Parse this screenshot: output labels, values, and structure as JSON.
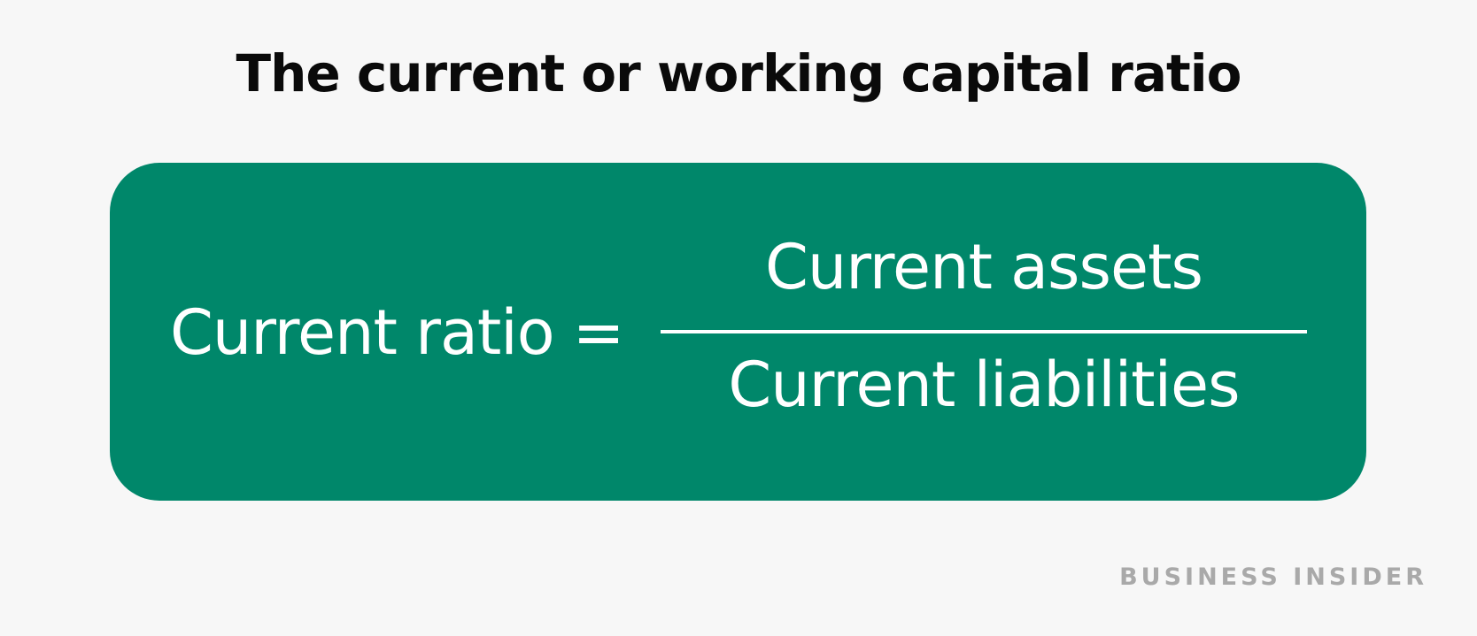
{
  "title": "The current or working capital ratio",
  "formula": {
    "lhs": "Current ratio =",
    "numerator": "Current assets",
    "denominator": "Current liabilities"
  },
  "colors": {
    "background": "#f7f7f7",
    "box": "#00876a",
    "text_on_box": "#ffffff",
    "title": "#0a0a0a",
    "brand": "#a9a9a9"
  },
  "brand": "BUSINESS INSIDER"
}
